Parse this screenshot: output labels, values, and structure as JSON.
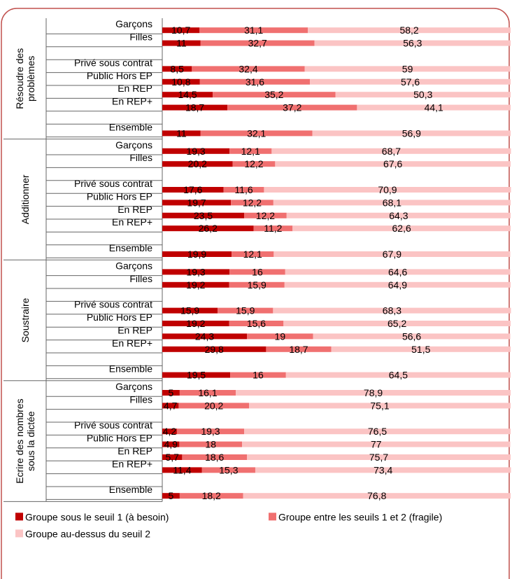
{
  "chart_data": {
    "type": "bar",
    "orientation": "horizontal",
    "stacked": "percent",
    "legend": "bottom",
    "grid": false,
    "xlim": [
      0,
      100
    ],
    "colors": [
      "#c00000",
      "#f07070",
      "#fbc4c4"
    ],
    "series_names": [
      "Groupe sous le seuil 1 (à besoin)",
      "Groupe entre les seuils 1 et 2 (fragile)",
      "Groupe au-dessus du seuil 2"
    ],
    "groups": [
      {
        "name": "Résoudre des problèmes",
        "rows": [
          {
            "label": "Garçons",
            "v": [
              "10,7",
              "31,1",
              "58,2"
            ]
          },
          {
            "label": "Filles",
            "v": [
              "11",
              "32,7",
              "56,3"
            ]
          },
          {
            "label": "",
            "v": []
          },
          {
            "label": "Privé sous contrat",
            "v": [
              "8,5",
              "32,4",
              "59"
            ]
          },
          {
            "label": "Public Hors EP",
            "v": [
              "10,8",
              "31,6",
              "57,6"
            ]
          },
          {
            "label": "En REP",
            "v": [
              "14,5",
              "35,2",
              "50,3"
            ]
          },
          {
            "label": "En REP+",
            "v": [
              "18,7",
              "37,2",
              "44,1"
            ]
          },
          {
            "label": "",
            "v": []
          },
          {
            "label": "Ensemble",
            "v": [
              "11",
              "32,1",
              "56,9"
            ]
          }
        ]
      },
      {
        "name": "Additionner",
        "rows": [
          {
            "label": "Garçons",
            "v": [
              "19,3",
              "12,1",
              "68,7"
            ]
          },
          {
            "label": "Filles",
            "v": [
              "20,2",
              "12,2",
              "67,6"
            ]
          },
          {
            "label": "",
            "v": []
          },
          {
            "label": "Privé sous contrat",
            "v": [
              "17,6",
              "11,6",
              "70,9"
            ]
          },
          {
            "label": "Public Hors EP",
            "v": [
              "19,7",
              "12,2",
              "68,1"
            ]
          },
          {
            "label": "En REP",
            "v": [
              "23,5",
              "12,2",
              "64,3"
            ]
          },
          {
            "label": "En REP+",
            "v": [
              "26,2",
              "11,2",
              "62,6"
            ]
          },
          {
            "label": "",
            "v": []
          },
          {
            "label": "Ensemble",
            "v": [
              "19,9",
              "12,1",
              "67,9"
            ]
          }
        ]
      },
      {
        "name": "Soustraire",
        "rows": [
          {
            "label": "Garçons",
            "v": [
              "19,3",
              "16",
              "64,6"
            ]
          },
          {
            "label": "Filles",
            "v": [
              "19,2",
              "15,9",
              "64,9"
            ]
          },
          {
            "label": "",
            "v": []
          },
          {
            "label": "Privé sous contrat",
            "v": [
              "15,9",
              "15,9",
              "68,3"
            ]
          },
          {
            "label": "Public Hors EP",
            "v": [
              "19,2",
              "15,6",
              "65,2"
            ]
          },
          {
            "label": "En REP",
            "v": [
              "24,3",
              "19",
              "56,6"
            ]
          },
          {
            "label": "En REP+",
            "v": [
              "29,8",
              "18,7",
              "51,5"
            ]
          },
          {
            "label": "",
            "v": []
          },
          {
            "label": "Ensemble",
            "v": [
              "19,5",
              "16",
              "64,5"
            ]
          }
        ]
      },
      {
        "name": "Ecrire des nombres sous la dictée",
        "rows": [
          {
            "label": "Garçons",
            "v": [
              "5",
              "16,1",
              "78,9"
            ]
          },
          {
            "label": "Filles",
            "v": [
              "4,7",
              "20,2",
              "75,1"
            ]
          },
          {
            "label": "",
            "v": []
          },
          {
            "label": "Privé sous contrat",
            "v": [
              "4,2",
              "19,3",
              "76,5"
            ]
          },
          {
            "label": "Public Hors EP",
            "v": [
              "4,9",
              "18",
              "77"
            ]
          },
          {
            "label": "En REP",
            "v": [
              "5,7",
              "18,6",
              "75,7"
            ]
          },
          {
            "label": "En REP+",
            "v": [
              "11,4",
              "15,3",
              "73,4"
            ]
          },
          {
            "label": "",
            "v": []
          },
          {
            "label": "Ensemble",
            "v": [
              "5",
              "18,2",
              "76,8"
            ]
          }
        ]
      }
    ]
  }
}
